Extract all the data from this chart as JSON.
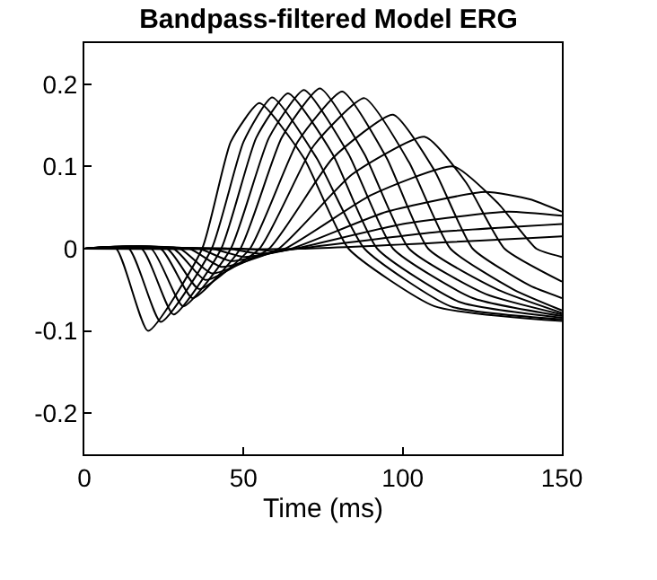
{
  "chart_data": {
    "type": "line",
    "title": "Bandpass-filtered Model ERG",
    "xlabel": "Time (ms)",
    "xlim": [
      0,
      150
    ],
    "xticks": [
      0,
      50,
      100,
      150
    ],
    "ylim": [
      -0.25,
      0.25
    ],
    "yticks": [
      -0.2,
      -0.1,
      0,
      0.1,
      0.2
    ],
    "marker": "none",
    "line_style": "solid",
    "series": [
      {
        "color": "#000000",
        "x": [
          0,
          10,
          20,
          37,
          46,
          55,
          69,
          83,
          110,
          150
        ],
        "values": [
          0,
          0,
          -0.1,
          0,
          0.13,
          0.177,
          0.11,
          0,
          -0.07,
          -0.088
        ]
      },
      {
        "color": "#000000",
        "x": [
          0,
          14,
          24,
          40,
          50,
          59,
          73,
          88,
          115,
          150
        ],
        "values": [
          0,
          0,
          -0.089,
          0,
          0.13,
          0.184,
          0.11,
          0,
          -0.07,
          -0.086
        ]
      },
      {
        "color": "#000000",
        "x": [
          0,
          18,
          28,
          43,
          54,
          64,
          78,
          92,
          118,
          150
        ],
        "values": [
          0,
          0,
          -0.08,
          0,
          0.135,
          0.189,
          0.115,
          0,
          -0.065,
          -0.084
        ]
      },
      {
        "color": "#000000",
        "x": [
          0,
          21,
          31,
          46,
          58,
          69,
          83,
          97,
          122,
          150
        ],
        "values": [
          0,
          0,
          -0.07,
          0,
          0.135,
          0.193,
          0.115,
          0,
          -0.06,
          -0.082
        ]
      },
      {
        "color": "#000000",
        "x": [
          0,
          24,
          34,
          49,
          62,
          74,
          88,
          102,
          126,
          150
        ],
        "values": [
          0,
          0,
          -0.06,
          0,
          0.135,
          0.195,
          0.115,
          0,
          -0.055,
          -0.08
        ]
      },
      {
        "color": "#000000",
        "x": [
          0,
          26,
          36,
          52,
          67,
          81,
          95,
          108,
          130,
          150
        ],
        "values": [
          0,
          0,
          -0.049,
          0,
          0.13,
          0.191,
          0.11,
          0,
          -0.05,
          -0.078
        ]
      },
      {
        "color": "#000000",
        "x": [
          0,
          28,
          38,
          55,
          72,
          88,
          102,
          115,
          135,
          150
        ],
        "values": [
          0,
          0,
          -0.038,
          0,
          0.125,
          0.183,
          0.105,
          0,
          -0.05,
          -0.075
        ]
      },
      {
        "color": "#000000",
        "x": [
          0,
          30,
          40,
          58,
          78,
          97,
          110,
          122,
          140,
          150
        ],
        "values": [
          0,
          0,
          -0.03,
          0,
          0.11,
          0.163,
          0.095,
          0,
          -0.045,
          -0.06
        ]
      },
      {
        "color": "#000000",
        "x": [
          0,
          33,
          43,
          61,
          84,
          107,
          120,
          132,
          150
        ],
        "values": [
          0,
          0,
          -0.022,
          0,
          0.09,
          0.136,
          0.08,
          0,
          -0.04
        ]
      },
      {
        "color": "#000000",
        "x": [
          0,
          36,
          46,
          63,
          90,
          116,
          130,
          142,
          150
        ],
        "values": [
          0,
          0,
          -0.015,
          0,
          0.065,
          0.1,
          0.055,
          0,
          -0.01
        ]
      },
      {
        "color": "#000000",
        "x": [
          0,
          40,
          50,
          65,
          95,
          126,
          140,
          150
        ],
        "values": [
          0,
          0,
          -0.01,
          0,
          0.045,
          0.069,
          0.06,
          0.045
        ]
      },
      {
        "color": "#000000",
        "x": [
          0,
          45,
          55,
          66,
          100,
          133,
          150
        ],
        "values": [
          0,
          0,
          -0.006,
          0,
          0.03,
          0.045,
          0.04
        ]
      },
      {
        "color": "#000000",
        "x": [
          0,
          50,
          60,
          67,
          110,
          150
        ],
        "values": [
          0,
          0,
          -0.003,
          0,
          0.02,
          0.03
        ]
      },
      {
        "color": "#000000",
        "x": [
          0,
          68,
          150
        ],
        "values": [
          0,
          0,
          0.015
        ]
      }
    ]
  }
}
